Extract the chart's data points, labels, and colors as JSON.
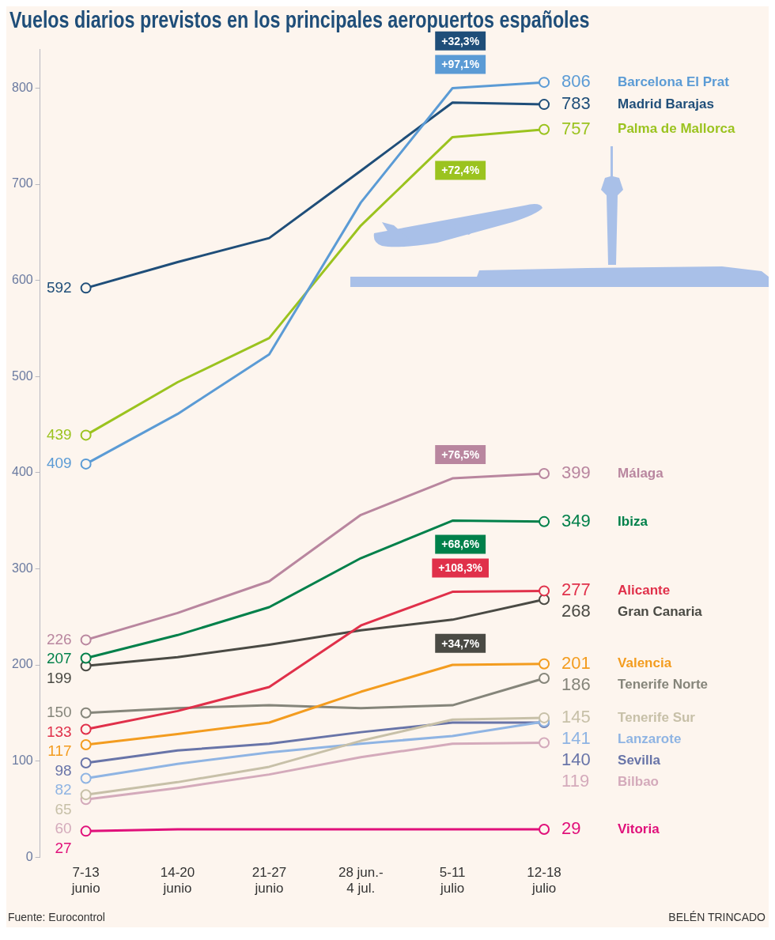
{
  "chart_data": {
    "type": "line",
    "title": "Vuelos diarios previstos en los principales aeropuertos españoles",
    "categories": [
      "7-13\njunio",
      "14-20\njunio",
      "21-27\njunio",
      "28 jun.-\n4 jul.",
      "5-11\njulio",
      "12-18\njulio"
    ],
    "series": [
      {
        "name": "Barcelona El Prat",
        "color": "#5b9bd5",
        "values": [
          409,
          461,
          523,
          681,
          800,
          806
        ],
        "value_labels": [
          "409",
          null,
          null,
          null,
          null,
          "806"
        ]
      },
      {
        "name": "Madrid Barajas",
        "color": "#1f4e79",
        "values": [
          592,
          619,
          644,
          714,
          785,
          783
        ],
        "value_labels": [
          "592",
          null,
          null,
          null,
          null,
          "783"
        ]
      },
      {
        "name": "Palma de Mallorca",
        "color": "#9bc31f",
        "values": [
          439,
          494,
          540,
          657,
          749,
          757
        ],
        "value_labels": [
          "439",
          null,
          null,
          null,
          null,
          "757"
        ]
      },
      {
        "name": "Málaga",
        "color": "#b9869f",
        "values": [
          226,
          254,
          287,
          356,
          394,
          399
        ],
        "value_labels": [
          "226",
          null,
          null,
          null,
          null,
          "399"
        ]
      },
      {
        "name": "Ibiza",
        "color": "#00804a",
        "values": [
          207,
          231,
          260,
          311,
          350,
          349
        ],
        "value_labels": [
          "207",
          null,
          null,
          null,
          null,
          "349"
        ]
      },
      {
        "name": "Alicante",
        "color": "#e0304a",
        "values": [
          133,
          152,
          177,
          241,
          276,
          277
        ],
        "value_labels": [
          "133",
          null,
          null,
          null,
          null,
          "277"
        ]
      },
      {
        "name": "Gran Canaria",
        "color": "#4a4a44",
        "values": [
          199,
          208,
          221,
          236,
          247,
          268
        ],
        "value_labels": [
          "199",
          null,
          null,
          null,
          null,
          "268"
        ]
      },
      {
        "name": "Valencia",
        "color": "#f39c1f",
        "values": [
          117,
          128,
          140,
          172,
          200,
          201
        ],
        "value_labels": [
          "117",
          null,
          null,
          null,
          null,
          "201"
        ]
      },
      {
        "name": "Tenerife Norte",
        "color": "#85857a",
        "values": [
          150,
          155,
          158,
          155,
          158,
          186
        ],
        "value_labels": [
          "150",
          null,
          null,
          null,
          null,
          "186"
        ]
      },
      {
        "name": "Tenerife Sur",
        "color": "#c7c0a8",
        "values": [
          65,
          78,
          94,
          121,
          143,
          145
        ],
        "value_labels": [
          "65",
          null,
          null,
          null,
          null,
          "145"
        ]
      },
      {
        "name": "Lanzarote",
        "color": "#8fb4e3",
        "values": [
          82,
          97,
          109,
          118,
          126,
          141
        ],
        "value_labels": [
          "82",
          null,
          null,
          null,
          null,
          "141"
        ]
      },
      {
        "name": "Sevilla",
        "color": "#6874a8",
        "values": [
          98,
          111,
          118,
          130,
          140,
          140
        ],
        "value_labels": [
          "98",
          null,
          null,
          null,
          null,
          "140"
        ]
      },
      {
        "name": "Bilbao",
        "color": "#d4aabb",
        "values": [
          60,
          72,
          86,
          104,
          118,
          119
        ],
        "value_labels": [
          "60",
          null,
          null,
          null,
          null,
          "119"
        ]
      },
      {
        "name": "Vitoria",
        "color": "#e0107a",
        "values": [
          27,
          29,
          29,
          29,
          29,
          29
        ],
        "value_labels": [
          "27",
          null,
          null,
          null,
          null,
          "29"
        ]
      }
    ],
    "ylim": [
      0,
      840
    ],
    "yticks": [
      0,
      100,
      200,
      300,
      400,
      500,
      600,
      700,
      800
    ],
    "line_style": "solid",
    "annotations": [
      "+97,1%",
      "+32,3%",
      "+72,4%",
      "+76,5%",
      "+68,6%",
      "+108,3%",
      "+34,7%",
      "Fuente: Eurocontrol",
      "BELÉN TRINCADO"
    ]
  }
}
